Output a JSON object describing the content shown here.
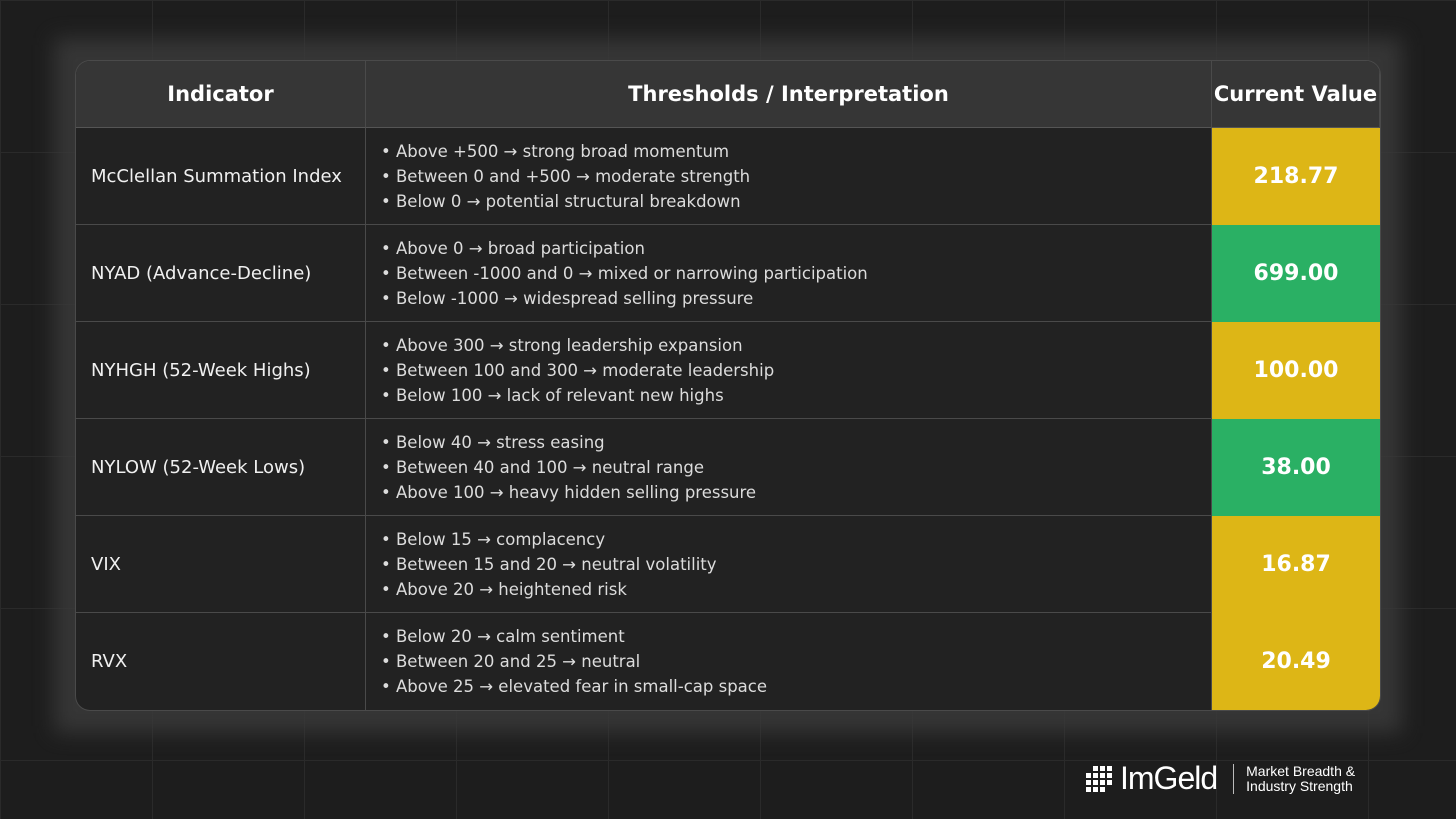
{
  "header": {
    "indicator": "Indicator",
    "thresholds": "Thresholds / Interpretation",
    "value": "Current Value"
  },
  "colors": {
    "yellow": "#DDB616",
    "green": "#2AB064"
  },
  "rows": [
    {
      "name": "McClellan Summation Index",
      "lines": [
        "• Above +500 → strong broad momentum",
        "• Between 0 and +500 → moderate strength",
        "• Below 0 → potential structural breakdown"
      ],
      "value": "218.77",
      "status": "yellow"
    },
    {
      "name": "NYAD (Advance-Decline)",
      "lines": [
        "• Above 0 → broad participation",
        "• Between -1000 and 0 → mixed or narrowing participation",
        "• Below -1000 → widespread selling pressure"
      ],
      "value": "699.00",
      "status": "green"
    },
    {
      "name": "NYHGH (52-Week Highs)",
      "lines": [
        "• Above 300 → strong leadership expansion",
        "• Between 100 and 300 → moderate leadership",
        "• Below 100 → lack of relevant new highs"
      ],
      "value": "100.00",
      "status": "yellow"
    },
    {
      "name": "NYLOW (52-Week Lows)",
      "lines": [
        "• Below 40 → stress easing",
        "• Between 40 and 100 → neutral range",
        "• Above 100 → heavy hidden selling pressure"
      ],
      "value": "38.00",
      "status": "green"
    },
    {
      "name": "VIX",
      "lines": [
        "• Below 15 → complacency",
        "• Between 15 and 20 → neutral volatility",
        "• Above 20 → heightened risk"
      ],
      "value": "16.87",
      "status": "yellow"
    },
    {
      "name": "RVX",
      "lines": [
        "• Below 20 → calm sentiment",
        "• Between 20 and 25 → neutral",
        "• Above 25 → elevated fear in small-cap space"
      ],
      "value": "20.49",
      "status": "yellow"
    }
  ],
  "logo": {
    "brand": "ImGeld",
    "tagline_1": "Market Breadth &",
    "tagline_2": "Industry Strength",
    "icon": "grid-logo-icon"
  }
}
